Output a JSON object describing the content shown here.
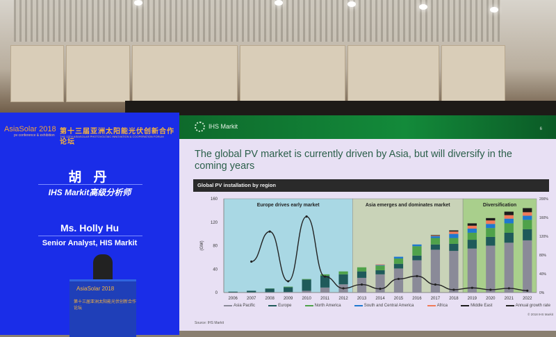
{
  "left_screen": {
    "event_logo": "AsiaSolar 2018",
    "event_tagline": "pv conference & exhibition",
    "forum_cn": "第十三届亚洲太阳能光伏创新合作论坛",
    "forum_en": "THE 13TH ASIASOLAR PHOTOVOLTAIC INNOVATION & COOPERATION FORUM",
    "speaker_name_cn": "胡 丹",
    "speaker_role_cn": "IHS Markit高级分析师",
    "speaker_name_en": "Ms. Holly Hu",
    "speaker_role_en": "Senior Analyst, HIS Markit"
  },
  "podium": {
    "logo": "AsiaSolar 2018",
    "text": "第十三届亚洲太阳能光伏创新合作论坛"
  },
  "slide": {
    "brand": "IHS Markit",
    "page_number": "6",
    "title": "The global PV market is currently driven by Asia, but will diversify in the coming years",
    "source": "Source: IHS Markit",
    "copyright": "© 2018 IHS Markit"
  },
  "chart_data": {
    "type": "bar",
    "stacked": true,
    "title": "Global PV installation by region",
    "ylabel": "(GW)",
    "ylim": [
      0,
      160
    ],
    "yticks": [
      "0",
      "40",
      "80",
      "120",
      "160"
    ],
    "y2lim": [
      0,
      200
    ],
    "y2ticks": [
      "0%",
      "40%",
      "80%",
      "120%",
      "160%",
      "200%"
    ],
    "categories": [
      "2006",
      "2007",
      "2008",
      "2009",
      "2010",
      "2011",
      "2012",
      "2013",
      "2014",
      "2015",
      "2016",
      "2017",
      "2018",
      "2019",
      "2020",
      "2021",
      "2022"
    ],
    "phases": [
      {
        "label": "Europe drives early market",
        "from": "2006",
        "to": "2012",
        "color": "#a9d8e4"
      },
      {
        "label": "Asia emerges and dominates market",
        "from": "2013",
        "to": "2018",
        "color": "#c9d3b8"
      },
      {
        "label": "Diversification",
        "from": "2019",
        "to": "2022",
        "color": "#a9cf8c"
      }
    ],
    "series": [
      {
        "name": "Asia Pacific",
        "color": "#8a8a98",
        "values": [
          0.3,
          0.5,
          0.7,
          1,
          3,
          8.5,
          14,
          25,
          31,
          41,
          55,
          73,
          71,
          75,
          80,
          85,
          89
        ]
      },
      {
        "name": "Europe",
        "color": "#1f5a5a",
        "values": [
          1.2,
          2.5,
          6,
          8,
          19,
          20,
          17,
          11,
          7,
          8,
          8,
          9,
          12,
          15,
          15,
          17,
          19
        ]
      },
      {
        "name": "North America",
        "color": "#4fa24a",
        "values": [
          0,
          0,
          0.3,
          1,
          1,
          2.5,
          5,
          7,
          8,
          9,
          16,
          11,
          10,
          12,
          15,
          16,
          16
        ]
      },
      {
        "name": "South and Central America",
        "color": "#1f78d0",
        "values": [
          0,
          0,
          0,
          0,
          0,
          0,
          0,
          0,
          1,
          3,
          3,
          3,
          7,
          7,
          7,
          8,
          7
        ]
      },
      {
        "name": "Africa",
        "color": "#f07a5a",
        "values": [
          0,
          0,
          0,
          0,
          0,
          0,
          0,
          0,
          1,
          0,
          0,
          1,
          4,
          5,
          6,
          6,
          6
        ]
      },
      {
        "name": "Middle East",
        "color": "#1c1c1c",
        "values": [
          0,
          0,
          0,
          0,
          0,
          0,
          0,
          0,
          0,
          0,
          0,
          1,
          2,
          4,
          4,
          6,
          7
        ]
      }
    ],
    "line_series": {
      "name": "Annual growth rate",
      "color": "#222222",
      "axis": "right",
      "values": [
        null,
        66,
        130,
        24,
        162,
        34,
        9,
        17,
        8,
        29,
        35,
        17,
        6,
        10,
        6,
        9,
        4
      ]
    },
    "legend_position": "bottom",
    "grid": false
  }
}
